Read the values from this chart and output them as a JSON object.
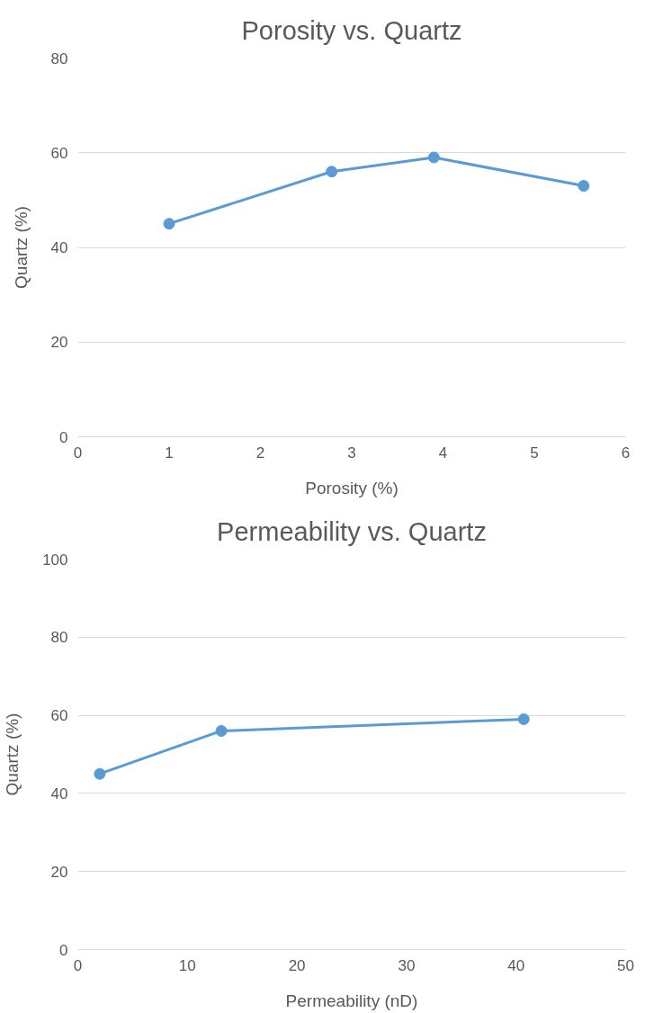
{
  "chart_data": [
    {
      "type": "line",
      "title": "Porosity vs. Quartz",
      "xlabel": "Porosity (%)",
      "ylabel": "Quartz (%)",
      "x": [
        1.0,
        2.78,
        3.9,
        5.54
      ],
      "xlim": [
        0,
        6
      ],
      "xticks": [
        0,
        1,
        2,
        3,
        4,
        5,
        6
      ],
      "ylim": [
        0,
        80
      ],
      "yticks": [
        0,
        20,
        40,
        60,
        80
      ],
      "grid": "y",
      "marker": "circle",
      "line_style": "solid",
      "series": [
        {
          "color": "#5b9bd5",
          "values": [
            45,
            56,
            59,
            53
          ]
        }
      ]
    },
    {
      "type": "line",
      "title": "Permeability vs. Quartz",
      "xlabel": "Permeability (nD)",
      "ylabel": "Quartz (%)",
      "x": [
        2.0,
        13.1,
        40.7
      ],
      "xlim": [
        0,
        50
      ],
      "xticks": [
        0,
        10,
        20,
        30,
        40,
        50
      ],
      "ylim": [
        0,
        100
      ],
      "yticks": [
        0,
        20,
        40,
        60,
        80,
        100
      ],
      "grid": "y",
      "marker": "circle",
      "line_style": "solid",
      "series": [
        {
          "color": "#5b9bd5",
          "values": [
            45,
            56,
            59
          ]
        }
      ]
    }
  ]
}
